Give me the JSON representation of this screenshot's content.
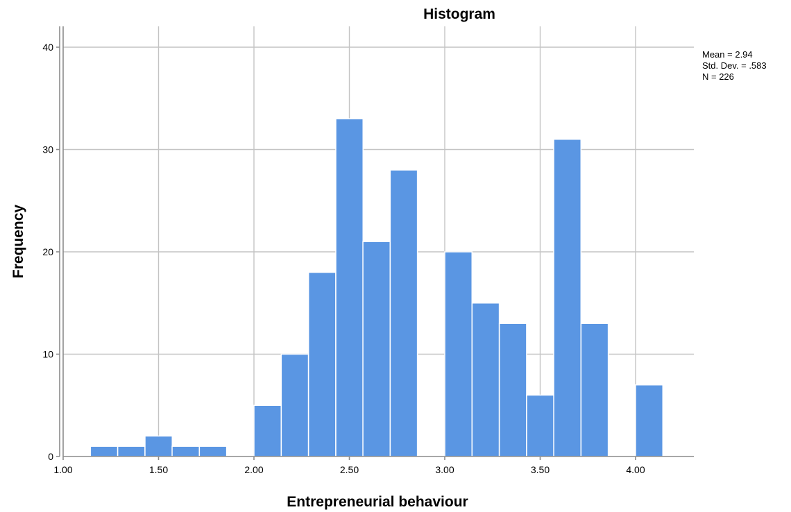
{
  "chart_data": {
    "type": "bar",
    "subtype": "histogram",
    "title": "Histogram",
    "xlabel": "Entrepreneurial behaviour",
    "ylabel": "Frequency",
    "xlim": [
      1.0,
      4.3
    ],
    "ylim": [
      0,
      42
    ],
    "grid": true,
    "bar_color": "#5a96e3",
    "bin_width": 0.1428,
    "x_ticks": [
      {
        "value": 1.0,
        "label": "1.00"
      },
      {
        "value": 1.5,
        "label": "1.50"
      },
      {
        "value": 2.0,
        "label": "2.00"
      },
      {
        "value": 2.5,
        "label": "2.50"
      },
      {
        "value": 3.0,
        "label": "3.00"
      },
      {
        "value": 3.5,
        "label": "3.50"
      },
      {
        "value": 4.0,
        "label": "4.00"
      }
    ],
    "y_ticks": [
      {
        "value": 0,
        "label": "0"
      },
      {
        "value": 10,
        "label": "10"
      },
      {
        "value": 20,
        "label": "20"
      },
      {
        "value": 30,
        "label": "30"
      },
      {
        "value": 40,
        "label": "40"
      }
    ],
    "bins": [
      {
        "start": 1.143,
        "count": 1
      },
      {
        "start": 1.286,
        "count": 1
      },
      {
        "start": 1.429,
        "count": 2
      },
      {
        "start": 1.571,
        "count": 1
      },
      {
        "start": 1.714,
        "count": 1
      },
      {
        "start": 1.857,
        "count": 0
      },
      {
        "start": 2.0,
        "count": 5
      },
      {
        "start": 2.143,
        "count": 10
      },
      {
        "start": 2.286,
        "count": 18
      },
      {
        "start": 2.429,
        "count": 33
      },
      {
        "start": 2.571,
        "count": 21
      },
      {
        "start": 2.714,
        "count": 28
      },
      {
        "start": 2.857,
        "count": 0
      },
      {
        "start": 3.0,
        "count": 20
      },
      {
        "start": 3.143,
        "count": 15
      },
      {
        "start": 3.286,
        "count": 13
      },
      {
        "start": 3.429,
        "count": 6
      },
      {
        "start": 3.571,
        "count": 31
      },
      {
        "start": 3.714,
        "count": 13
      },
      {
        "start": 3.857,
        "count": 0
      },
      {
        "start": 4.0,
        "count": 7
      }
    ],
    "stats": {
      "mean": "Mean = 2.94",
      "std_dev": "Std. Dev. = .583",
      "n": "N = 226"
    }
  }
}
